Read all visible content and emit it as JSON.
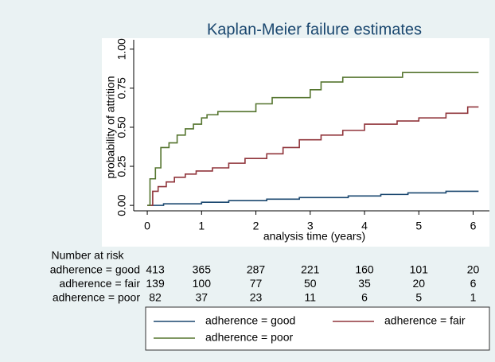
{
  "chart_data": {
    "type": "step",
    "title": "Kaplan-Meier failure estimates",
    "xlabel": "analysis time (years)",
    "ylabel": "probability of attrition",
    "xlim": [
      -0.25,
      6.3
    ],
    "ylim": [
      -0.035,
      1.06
    ],
    "xticks": [
      0,
      1,
      2,
      3,
      4,
      5,
      6
    ],
    "yticks": [
      {
        "value": 0,
        "label": "0.00"
      },
      {
        "value": 0.25,
        "label": "0.25"
      },
      {
        "value": 0.5,
        "label": "0.50"
      },
      {
        "value": 0.75,
        "label": "0.75"
      },
      {
        "value": 1,
        "label": "1.00"
      }
    ],
    "grid": false,
    "series": [
      {
        "name": "adherence = good",
        "color": "#1a476f",
        "x": [
          0,
          0.3,
          1.0,
          1.5,
          2.2,
          2.8,
          3.7,
          4.3,
          4.8,
          5.5,
          6.1
        ],
        "values": [
          0,
          0.01,
          0.02,
          0.03,
          0.04,
          0.05,
          0.06,
          0.07,
          0.08,
          0.09,
          0.09
        ]
      },
      {
        "name": "adherence = fair",
        "color": "#90353b",
        "x": [
          0,
          0.1,
          0.2,
          0.35,
          0.5,
          0.7,
          0.9,
          1.2,
          1.5,
          1.8,
          2.2,
          2.5,
          2.8,
          3.2,
          3.6,
          4.0,
          4.6,
          5.0,
          5.5,
          5.9,
          6.1
        ],
        "values": [
          0,
          0.09,
          0.12,
          0.15,
          0.18,
          0.2,
          0.22,
          0.24,
          0.27,
          0.3,
          0.33,
          0.37,
          0.42,
          0.45,
          0.48,
          0.52,
          0.54,
          0.56,
          0.59,
          0.63,
          0.63
        ]
      },
      {
        "name": "adherence = poor",
        "color": "#55752f",
        "x": [
          0,
          0.05,
          0.15,
          0.25,
          0.4,
          0.55,
          0.7,
          0.85,
          1.0,
          1.1,
          1.3,
          2.0,
          2.3,
          3.0,
          3.2,
          3.6,
          4.7,
          6.1
        ],
        "values": [
          0,
          0.17,
          0.24,
          0.37,
          0.4,
          0.45,
          0.49,
          0.52,
          0.56,
          0.58,
          0.6,
          0.65,
          0.69,
          0.74,
          0.79,
          0.82,
          0.85,
          0.85
        ]
      }
    ],
    "risk_table": {
      "title": "Number at risk",
      "times": [
        0,
        1,
        2,
        3,
        4,
        5,
        6
      ],
      "rows": [
        {
          "label": "adherence = good",
          "values": [
            413,
            365,
            287,
            221,
            160,
            101,
            20
          ]
        },
        {
          "label": "adherence = fair",
          "values": [
            139,
            100,
            77,
            50,
            35,
            20,
            6
          ]
        },
        {
          "label": "adherence = poor",
          "values": [
            82,
            37,
            23,
            11,
            6,
            5,
            1
          ]
        }
      ]
    }
  }
}
